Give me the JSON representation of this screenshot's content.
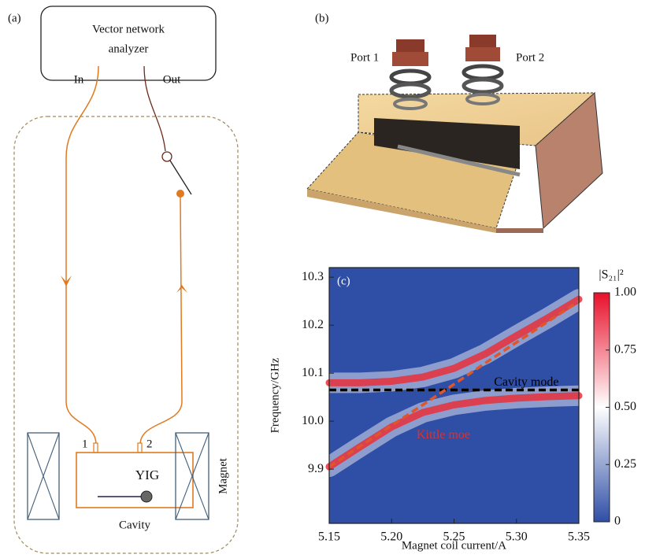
{
  "panel_a": {
    "label": "(a)",
    "analyzer": [
      "Vector network",
      "analyzer"
    ],
    "in": "In",
    "out": "Out",
    "port1": "1",
    "port2": "2",
    "yig": "YIG",
    "cavity": "Cavity",
    "magnet": "Magnet"
  },
  "panel_b": {
    "label": "(b)",
    "port1": "Port 1",
    "port2": "Port 2"
  },
  "chart_data": {
    "type": "heatmap",
    "panel_label": "(c)",
    "x_label": "Magnet coil current/A",
    "y_label": "Frequency/GHz",
    "x": [
      5.15,
      5.175,
      5.2,
      5.225,
      5.25,
      5.275,
      5.3,
      5.325,
      5.35
    ],
    "series": [
      {
        "color": "#e8303a",
        "style": "band",
        "values": [
          10.08,
          10.08,
          10.083,
          10.092,
          10.11,
          10.14,
          10.178,
          10.215,
          10.254
        ]
      },
      {
        "color": "#e8303a",
        "style": "band",
        "values": [
          9.905,
          9.947,
          9.988,
          10.018,
          10.034,
          10.043,
          10.048,
          10.051,
          10.053
        ]
      },
      {
        "color": "#000000",
        "style": "dashed",
        "values": [
          10.065,
          10.065,
          10.065,
          10.065,
          10.065,
          10.065,
          10.065,
          10.065,
          10.065
        ]
      },
      {
        "color": "#e0562a",
        "style": "dashed",
        "values": [
          9.905,
          9.948,
          9.991,
          10.034,
          10.077,
          10.121,
          10.164,
          10.207,
          10.25
        ]
      }
    ],
    "annotations": [
      {
        "text": "Cavity mode",
        "x": 5.282,
        "y": 10.08,
        "color": "#000000"
      },
      {
        "text": "Kittle moe",
        "x": 5.22,
        "y": 9.97,
        "color": "#e0302a"
      }
    ],
    "background": "#2f4ea6",
    "xlim": [
      5.15,
      5.35
    ],
    "ylim": [
      9.787,
      10.32
    ],
    "xticks": [
      5.15,
      {
        "value": 5.2,
        "label": "5.20"
      },
      5.25,
      {
        "value": 5.3,
        "label": "5.30"
      },
      5.35
    ],
    "yticks": [
      9.9,
      {
        "value": 10.0,
        "label": "10.0"
      },
      10.1,
      10.2,
      10.3
    ],
    "colorbar": {
      "label": "|S₂₁|²",
      "lim": [
        0,
        1
      ],
      "ticks": [
        0,
        0.25,
        {
          "value": 0.5,
          "label": "0.50"
        },
        0.75,
        {
          "value": 1,
          "label": "1.00"
        }
      ]
    }
  }
}
